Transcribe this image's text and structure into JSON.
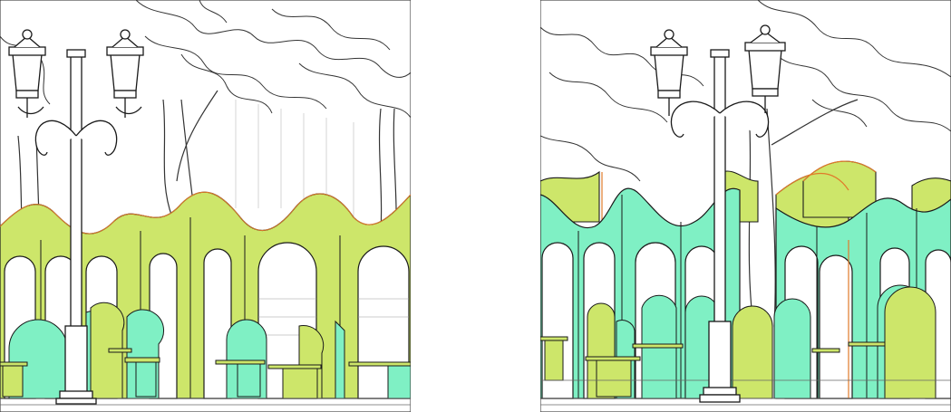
{
  "image": {
    "kind": "architectural-elevation-illustration",
    "panel_count": 2,
    "panels": [
      {
        "id": "left",
        "subject": "wavy-arcade-with-street-lamp"
      },
      {
        "id": "right",
        "subject": "wavy-arcade-with-street-lamp"
      }
    ],
    "colors": {
      "lime": "#cde66a",
      "mint": "#7ff0c4",
      "orange_edge": "#e07a2a",
      "outline": "#1a1a1a",
      "background": "#ffffff"
    }
  }
}
